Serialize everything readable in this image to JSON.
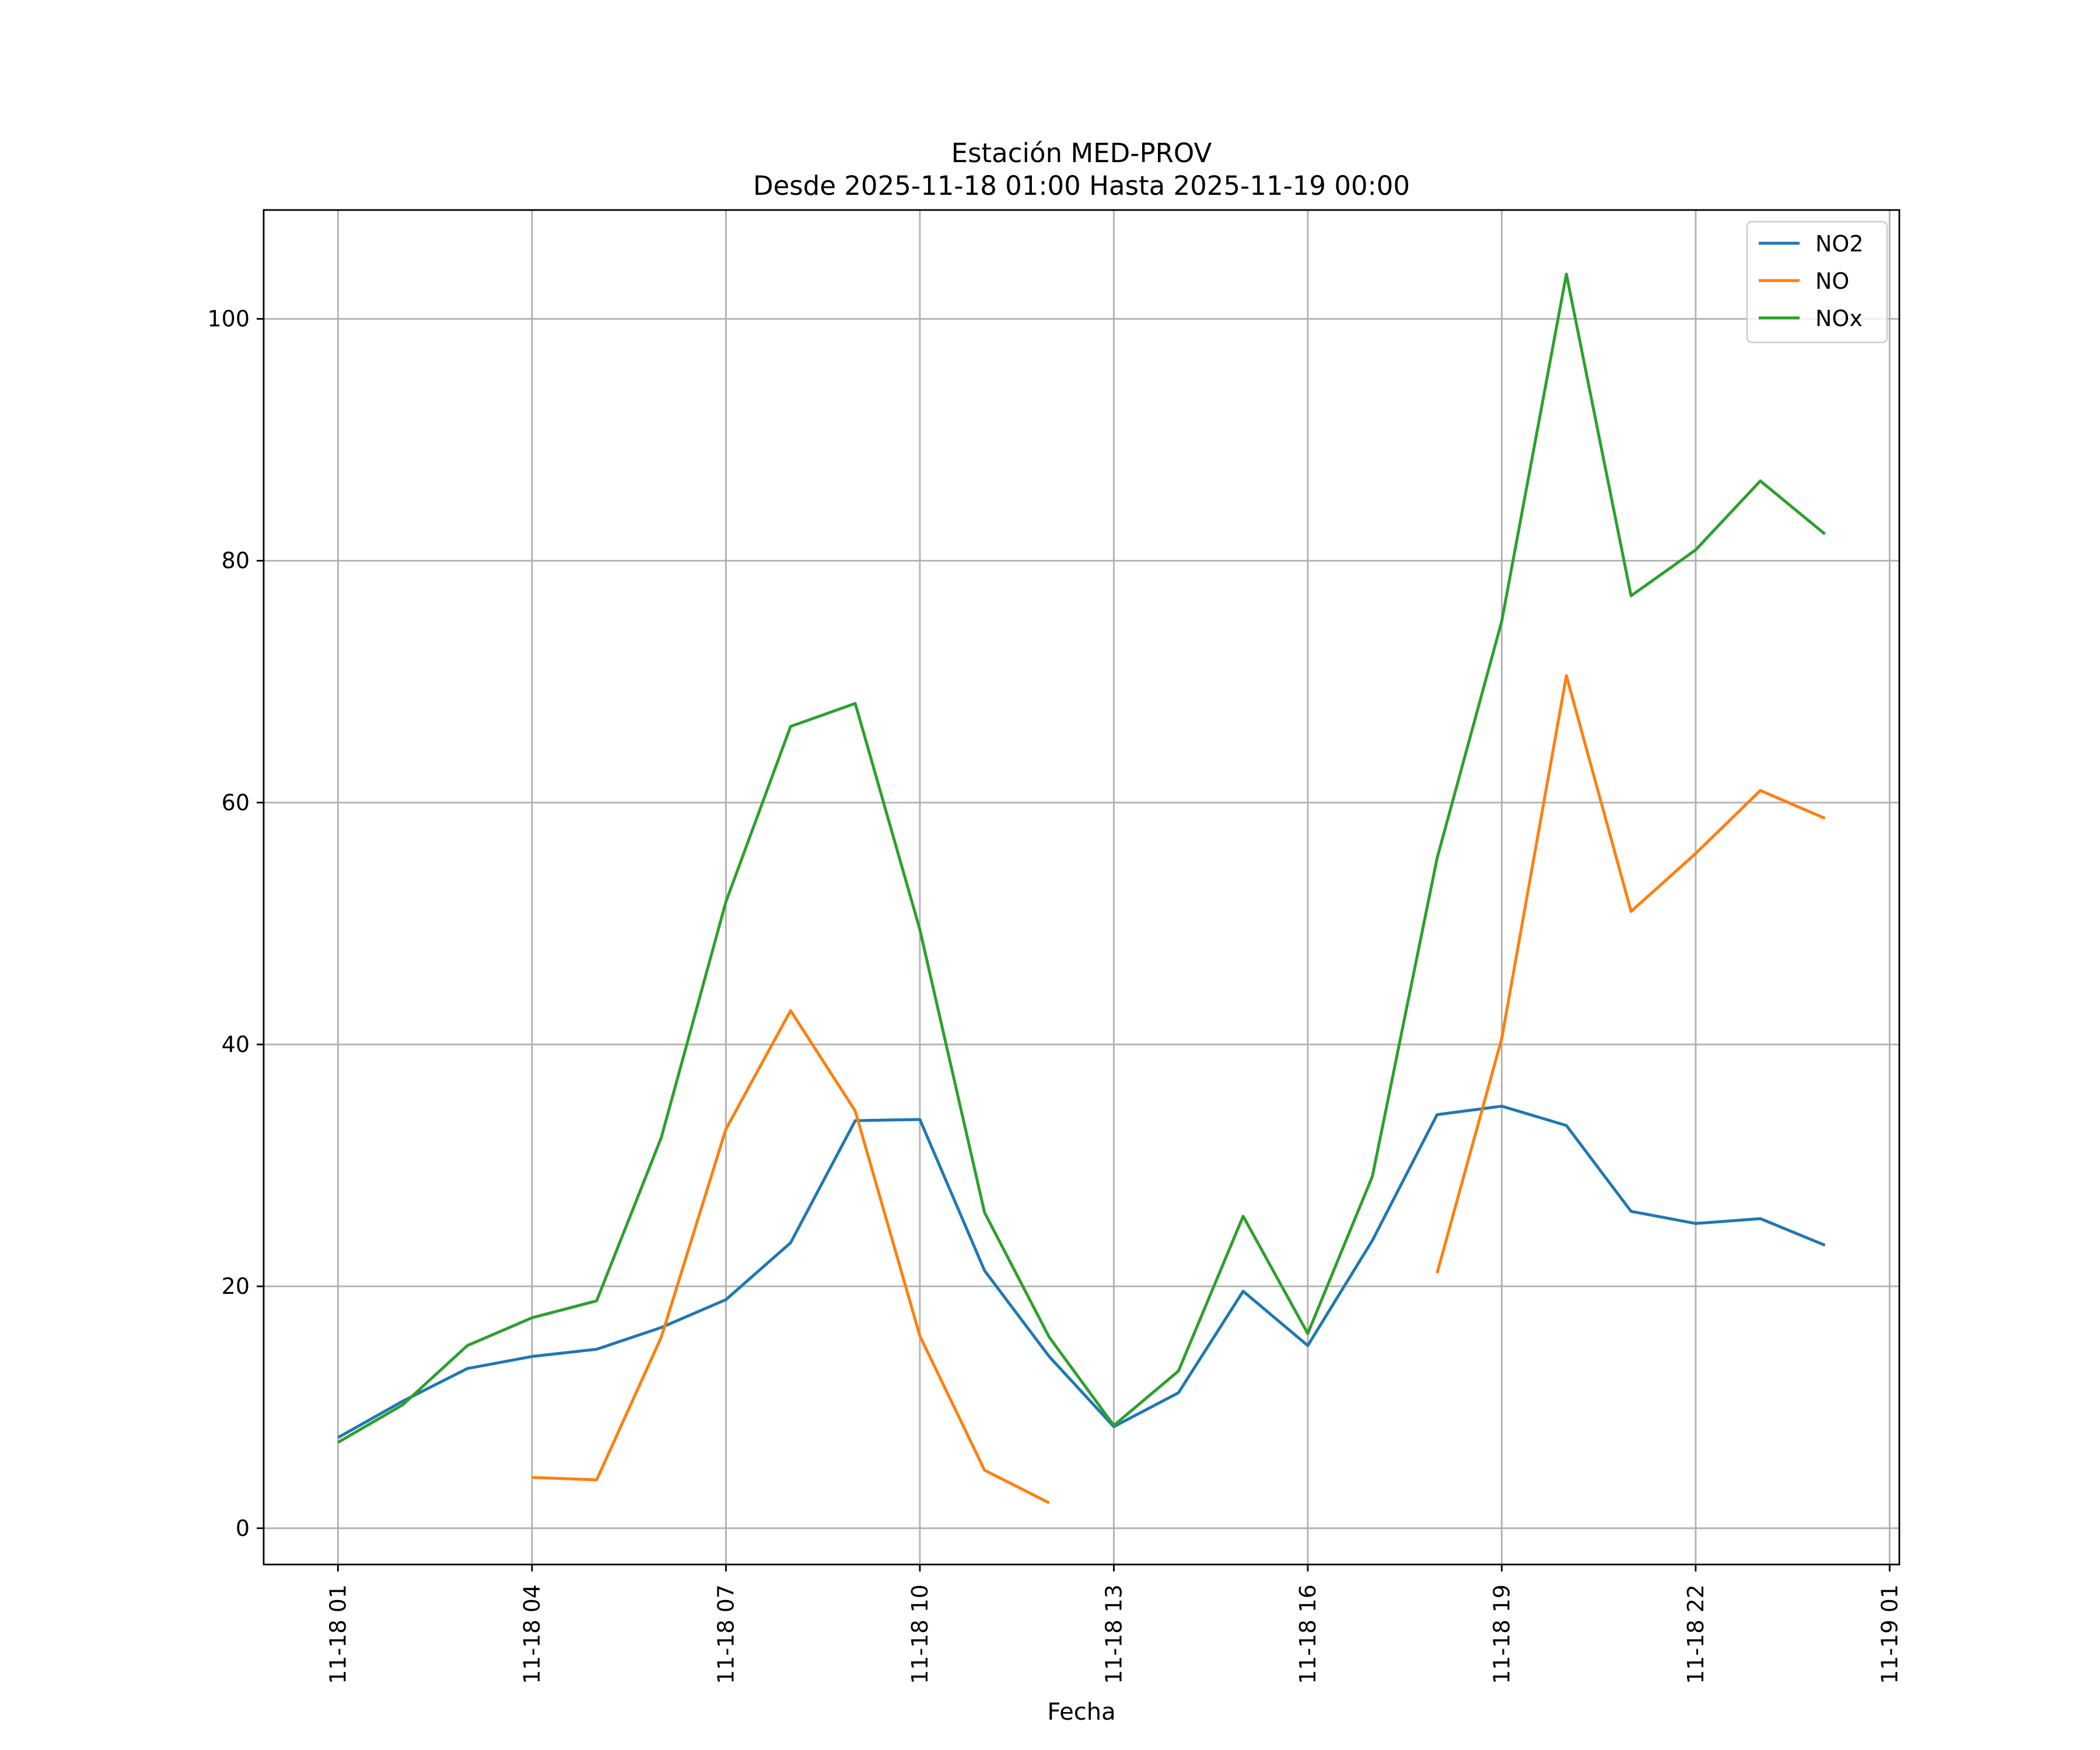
{
  "chart_data": {
    "type": "line",
    "title": "Estación MED-PROV",
    "subtitle": "Desde 2025-11-18 01:00 Hasta 2025-11-19 00:00",
    "xlabel": "Fecha",
    "ylabel": "",
    "x": [
      "2025-11-18 01:00",
      "2025-11-18 02:00",
      "2025-11-18 03:00",
      "2025-11-18 04:00",
      "2025-11-18 05:00",
      "2025-11-18 06:00",
      "2025-11-18 07:00",
      "2025-11-18 08:00",
      "2025-11-18 09:00",
      "2025-11-18 10:00",
      "2025-11-18 11:00",
      "2025-11-18 12:00",
      "2025-11-18 13:00",
      "2025-11-18 14:00",
      "2025-11-18 15:00",
      "2025-11-18 16:00",
      "2025-11-18 17:00",
      "2025-11-18 18:00",
      "2025-11-18 19:00",
      "2025-11-18 20:00",
      "2025-11-18 21:00",
      "2025-11-18 22:00",
      "2025-11-18 23:00",
      "2025-11-19 00:00"
    ],
    "x_ticks": [
      "11-18 01",
      "11-18 04",
      "11-18 07",
      "11-18 10",
      "11-18 13",
      "11-18 16",
      "11-18 19",
      "11-18 22",
      "11-19 01"
    ],
    "xlim": [
      "2025-11-17 23:51",
      "2025-11-19 01:09"
    ],
    "ylim": [
      -3,
      109
    ],
    "y_ticks": [
      0,
      20,
      40,
      60,
      80,
      100
    ],
    "grid": true,
    "legend_position": "top-right",
    "series": [
      {
        "name": "NO2",
        "color": "#1f77b4",
        "values": [
          7.5,
          10.5,
          13.2,
          14.2,
          14.8,
          16.6,
          18.9,
          23.6,
          33.7,
          33.8,
          21.3,
          14.2,
          8.4,
          11.2,
          19.6,
          15.1,
          23.8,
          34.2,
          34.9,
          33.3,
          26.2,
          25.2,
          25.6,
          23.4
        ]
      },
      {
        "name": "NO",
        "color": "#ff7f0e",
        "values": [
          null,
          null,
          null,
          4.2,
          4.0,
          15.8,
          33.0,
          42.8,
          34.5,
          15.9,
          4.8,
          2.1,
          null,
          null,
          null,
          null,
          null,
          21.1,
          40.5,
          70.5,
          51.0,
          55.8,
          61.0,
          58.7
        ]
      },
      {
        "name": "NOx",
        "color": "#2ca02c",
        "values": [
          7.1,
          10.2,
          15.1,
          17.4,
          18.8,
          32.3,
          51.8,
          66.3,
          68.2,
          49.5,
          26.1,
          15.8,
          8.5,
          13.0,
          25.8,
          16.1,
          29.1,
          55.4,
          75.0,
          103.7,
          77.1,
          80.9,
          86.6,
          82.2
        ]
      }
    ]
  }
}
